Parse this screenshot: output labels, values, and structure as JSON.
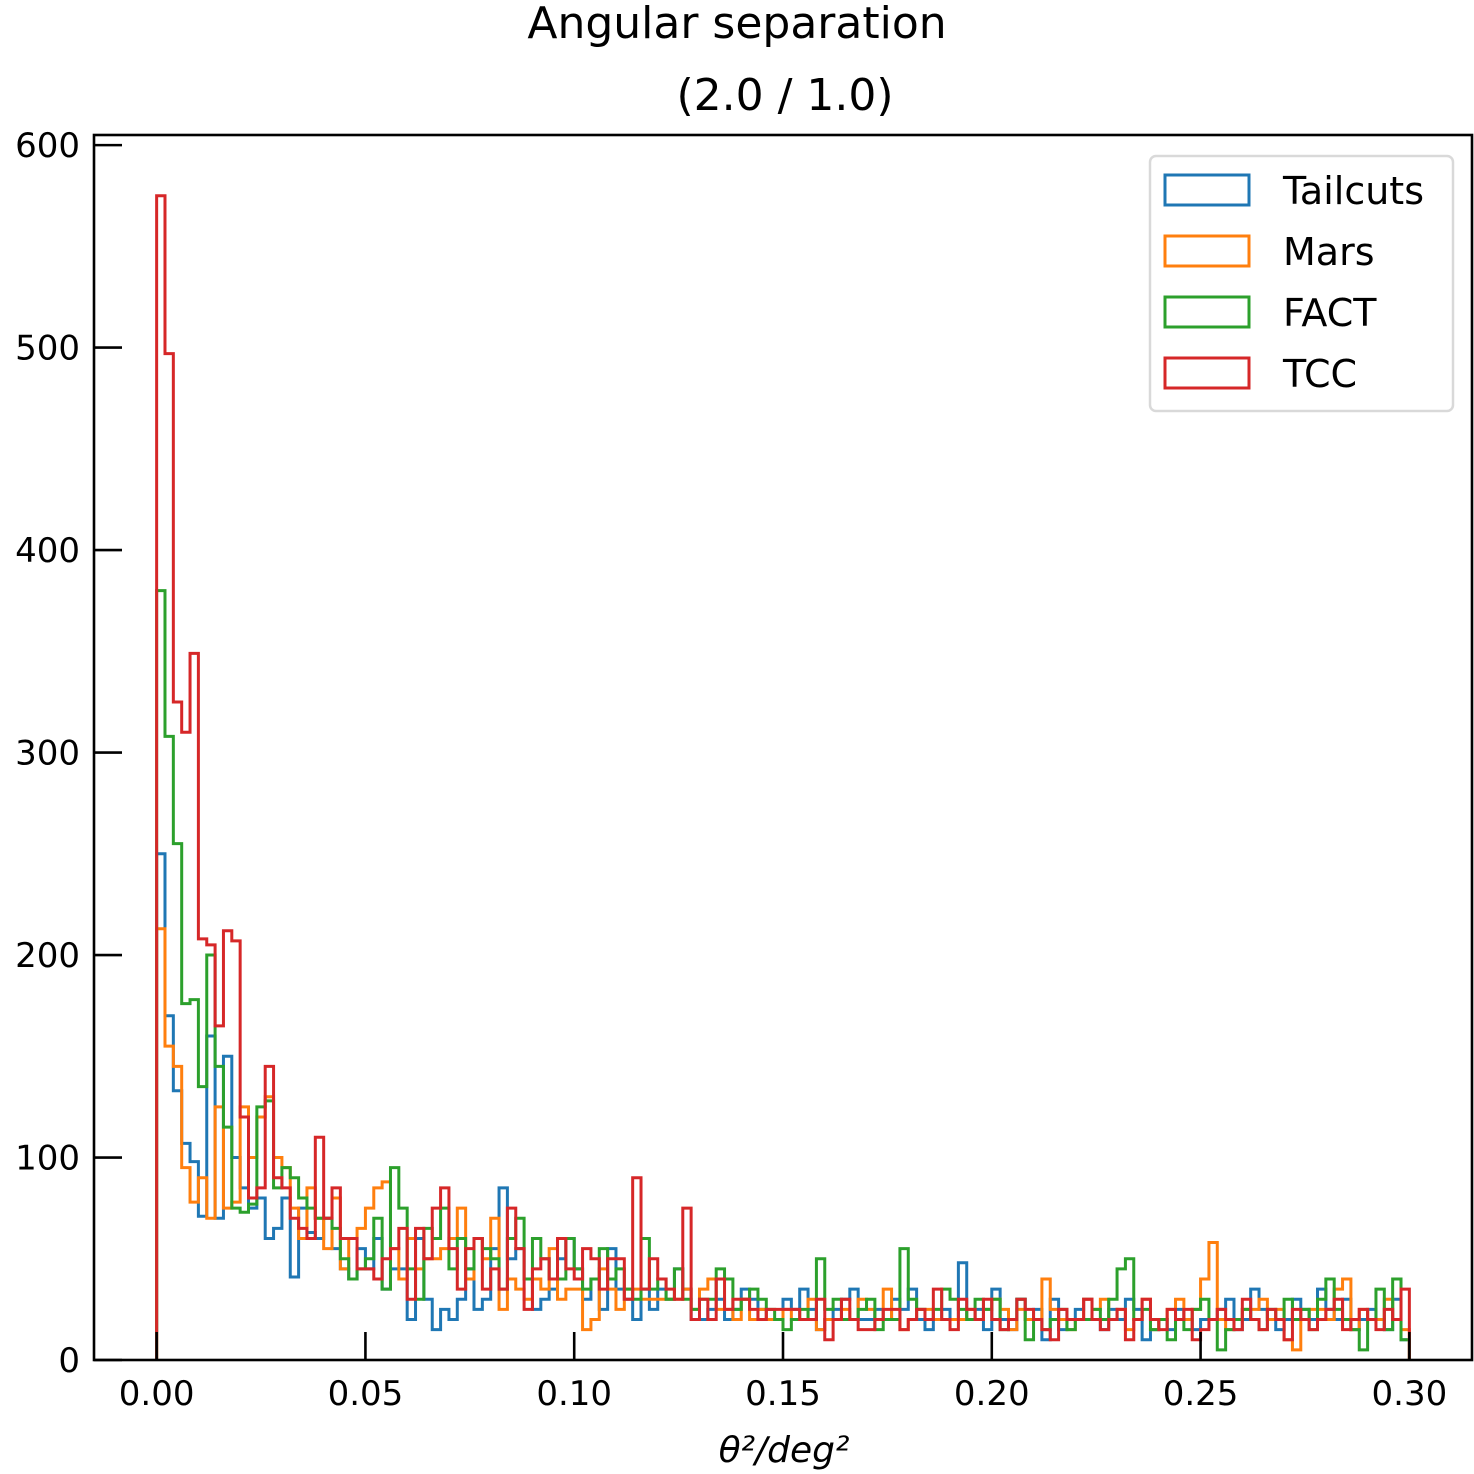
{
  "chart_data": {
    "type": "histogram-step",
    "title": "Angular separation",
    "subtitle": "(2.0 / 1.0)",
    "xlabel": "θ²/deg²",
    "ylabel": "",
    "xlim": [
      -0.015,
      0.315
    ],
    "ylim": [
      0,
      605
    ],
    "xticks": [
      0.0,
      0.05,
      0.1,
      0.15,
      0.2,
      0.25,
      0.3
    ],
    "xtick_labels": [
      "0.00",
      "0.05",
      "0.10",
      "0.15",
      "0.20",
      "0.25",
      "0.30"
    ],
    "yticks": [
      0,
      100,
      200,
      300,
      400,
      500,
      600
    ],
    "ytick_labels": [
      "0",
      "100",
      "200",
      "300",
      "400",
      "500",
      "600"
    ],
    "bins": {
      "start": 0.0,
      "end": 0.3,
      "count": 150
    },
    "grid": false,
    "legend_position": "top-right",
    "series": [
      {
        "name": "Tailcuts",
        "color": "#1f77b4",
        "values": [
          250,
          170,
          133,
          107,
          98,
          71,
          160,
          70,
          150,
          100,
          85,
          75,
          80,
          60,
          65,
          80,
          41,
          75,
          63,
          60,
          70,
          55,
          45,
          40,
          55,
          45,
          60,
          35,
          45,
          45,
          20,
          60,
          30,
          15,
          25,
          20,
          30,
          45,
          25,
          30,
          55,
          85,
          50,
          55,
          40,
          25,
          30,
          35,
          50,
          60,
          45,
          30,
          40,
          25,
          55,
          35,
          30,
          20,
          35,
          25,
          35,
          30,
          45,
          35,
          20,
          20,
          25,
          30,
          20,
          25,
          35,
          30,
          25,
          20,
          20,
          30,
          25,
          35,
          25,
          15,
          20,
          25,
          30,
          35,
          20,
          20,
          25,
          20,
          30,
          25,
          35,
          20,
          15,
          20,
          25,
          20,
          48,
          20,
          25,
          15,
          35,
          20,
          15,
          30,
          20,
          25,
          10,
          30,
          15,
          20,
          25,
          30,
          20,
          15,
          25,
          20,
          30,
          25,
          10,
          15,
          20,
          15,
          25,
          20,
          15,
          20,
          20,
          25,
          30,
          15,
          20,
          35,
          25,
          20,
          15,
          20,
          30,
          25,
          20,
          35,
          25,
          20,
          30,
          15,
          20,
          25,
          20,
          15,
          30,
          10
        ]
      },
      {
        "name": "Mars",
        "color": "#ff7f0e",
        "values": [
          213,
          155,
          145,
          95,
          78,
          90,
          70,
          125,
          75,
          78,
          125,
          100,
          120,
          130,
          100,
          95,
          75,
          60,
          85,
          70,
          55,
          80,
          45,
          60,
          65,
          75,
          85,
          88,
          55,
          40,
          60,
          45,
          50,
          50,
          55,
          60,
          75,
          40,
          60,
          50,
          70,
          25,
          40,
          35,
          30,
          40,
          35,
          55,
          30,
          35,
          35,
          15,
          20,
          45,
          35,
          25,
          35,
          35,
          30,
          30,
          30,
          30,
          30,
          35,
          25,
          35,
          40,
          25,
          25,
          20,
          30,
          20,
          25,
          20,
          20,
          25,
          20,
          20,
          30,
          15,
          20,
          20,
          25,
          20,
          30,
          25,
          20,
          35,
          20,
          15,
          20,
          25,
          25,
          20,
          20,
          20,
          20,
          25,
          20,
          25,
          30,
          25,
          15,
          25,
          20,
          20,
          40,
          25,
          20,
          15,
          20,
          30,
          25,
          30,
          20,
          25,
          15,
          20,
          30,
          15,
          20,
          25,
          30,
          20,
          25,
          40,
          58,
          20,
          15,
          20,
          25,
          25,
          30,
          20,
          25,
          10,
          5,
          20,
          25,
          25,
          20,
          35,
          40,
          15,
          25,
          20,
          20,
          30,
          20,
          15
        ]
      },
      {
        "name": "FACT",
        "color": "#2ca02c",
        "values": [
          380,
          308,
          255,
          176,
          178,
          135,
          200,
          145,
          115,
          75,
          73,
          77,
          125,
          128,
          85,
          95,
          90,
          80,
          75,
          70,
          70,
          65,
          50,
          40,
          45,
          50,
          70,
          35,
          95,
          75,
          45,
          30,
          65,
          60,
          75,
          45,
          60,
          45,
          60,
          55,
          50,
          35,
          60,
          70,
          40,
          60,
          50,
          40,
          40,
          60,
          45,
          35,
          40,
          55,
          40,
          45,
          35,
          30,
          60,
          35,
          40,
          30,
          45,
          30,
          25,
          30,
          30,
          45,
          40,
          25,
          30,
          35,
          30,
          25,
          20,
          15,
          20,
          25,
          20,
          50,
          25,
          30,
          20,
          20,
          25,
          30,
          15,
          20,
          20,
          55,
          30,
          25,
          20,
          25,
          35,
          30,
          25,
          20,
          30,
          25,
          30,
          15,
          20,
          30,
          10,
          20,
          15,
          20,
          25,
          15,
          20,
          20,
          25,
          20,
          30,
          45,
          50,
          20,
          25,
          15,
          20,
          10,
          20,
          15,
          25,
          30,
          20,
          5,
          15,
          20,
          25,
          20,
          15,
          25,
          20,
          30,
          20,
          25,
          15,
          30,
          40,
          25,
          20,
          15,
          5,
          20,
          35,
          15,
          40,
          10
        ]
      },
      {
        "name": "TCC",
        "color": "#d62728",
        "values": [
          575,
          497,
          325,
          310,
          349,
          208,
          205,
          165,
          212,
          207,
          120,
          80,
          85,
          145,
          90,
          85,
          70,
          65,
          60,
          110,
          70,
          85,
          60,
          60,
          45,
          45,
          40,
          50,
          55,
          65,
          30,
          65,
          50,
          75,
          85,
          55,
          35,
          55,
          60,
          35,
          45,
          35,
          75,
          55,
          25,
          45,
          50,
          40,
          60,
          45,
          40,
          55,
          50,
          35,
          50,
          50,
          30,
          90,
          35,
          50,
          40,
          35,
          30,
          75,
          20,
          30,
          20,
          40,
          25,
          30,
          30,
          25,
          20,
          25,
          25,
          25,
          25,
          20,
          20,
          30,
          10,
          20,
          30,
          20,
          15,
          15,
          20,
          25,
          25,
          15,
          20,
          25,
          20,
          35,
          20,
          15,
          30,
          25,
          20,
          30,
          20,
          15,
          20,
          30,
          25,
          20,
          15,
          10,
          25,
          20,
          20,
          30,
          20,
          15,
          20,
          25,
          10,
          20,
          30,
          20,
          15,
          25,
          20,
          25,
          10,
          15,
          20,
          25,
          20,
          15,
          30,
          20,
          15,
          25,
          20,
          10,
          25,
          20,
          15,
          20,
          25,
          30,
          15,
          20,
          25,
          20,
          15,
          25,
          20,
          35
        ]
      }
    ]
  }
}
